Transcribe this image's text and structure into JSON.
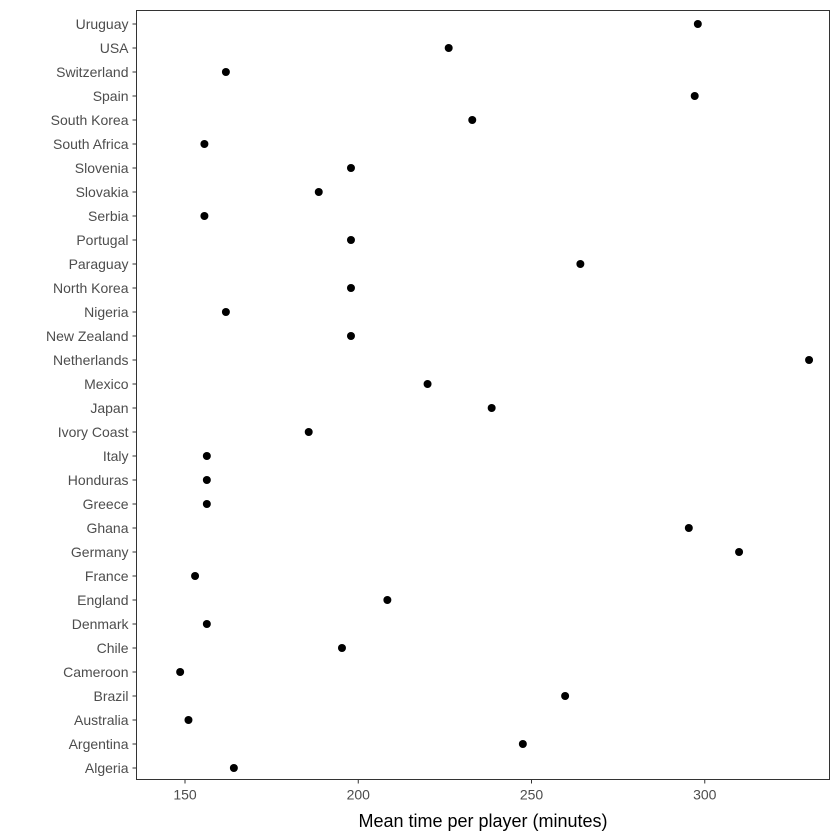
{
  "chart_data": {
    "type": "scatter",
    "title": "",
    "xlabel": "Mean time per player (minutes)",
    "ylabel": "",
    "xlim": [
      136,
      336
    ],
    "x_ticks": [
      150,
      200,
      250,
      300
    ],
    "grid": false,
    "point_color": "#000000",
    "categories": [
      "Algeria",
      "Argentina",
      "Australia",
      "Brazil",
      "Cameroon",
      "Chile",
      "Denmark",
      "England",
      "France",
      "Germany",
      "Ghana",
      "Greece",
      "Honduras",
      "Italy",
      "Ivory Coast",
      "Japan",
      "Mexico",
      "Netherlands",
      "New Zealand",
      "Nigeria",
      "North Korea",
      "Paraguay",
      "Portugal",
      "Serbia",
      "Slovakia",
      "Slovenia",
      "South Africa",
      "South Korea",
      "Spain",
      "Switzerland",
      "USA",
      "Uruguay"
    ],
    "values": [
      164.1,
      247.5,
      151.0,
      259.7,
      148.6,
      195.3,
      156.3,
      208.4,
      152.9,
      309.9,
      295.4,
      156.3,
      156.3,
      156.3,
      185.7,
      238.5,
      220.0,
      330.1,
      197.9,
      161.8,
      197.9,
      264.1,
      197.9,
      155.6,
      188.6,
      197.9,
      155.6,
      232.9,
      297.1,
      161.8,
      226.1,
      298.0
    ]
  }
}
